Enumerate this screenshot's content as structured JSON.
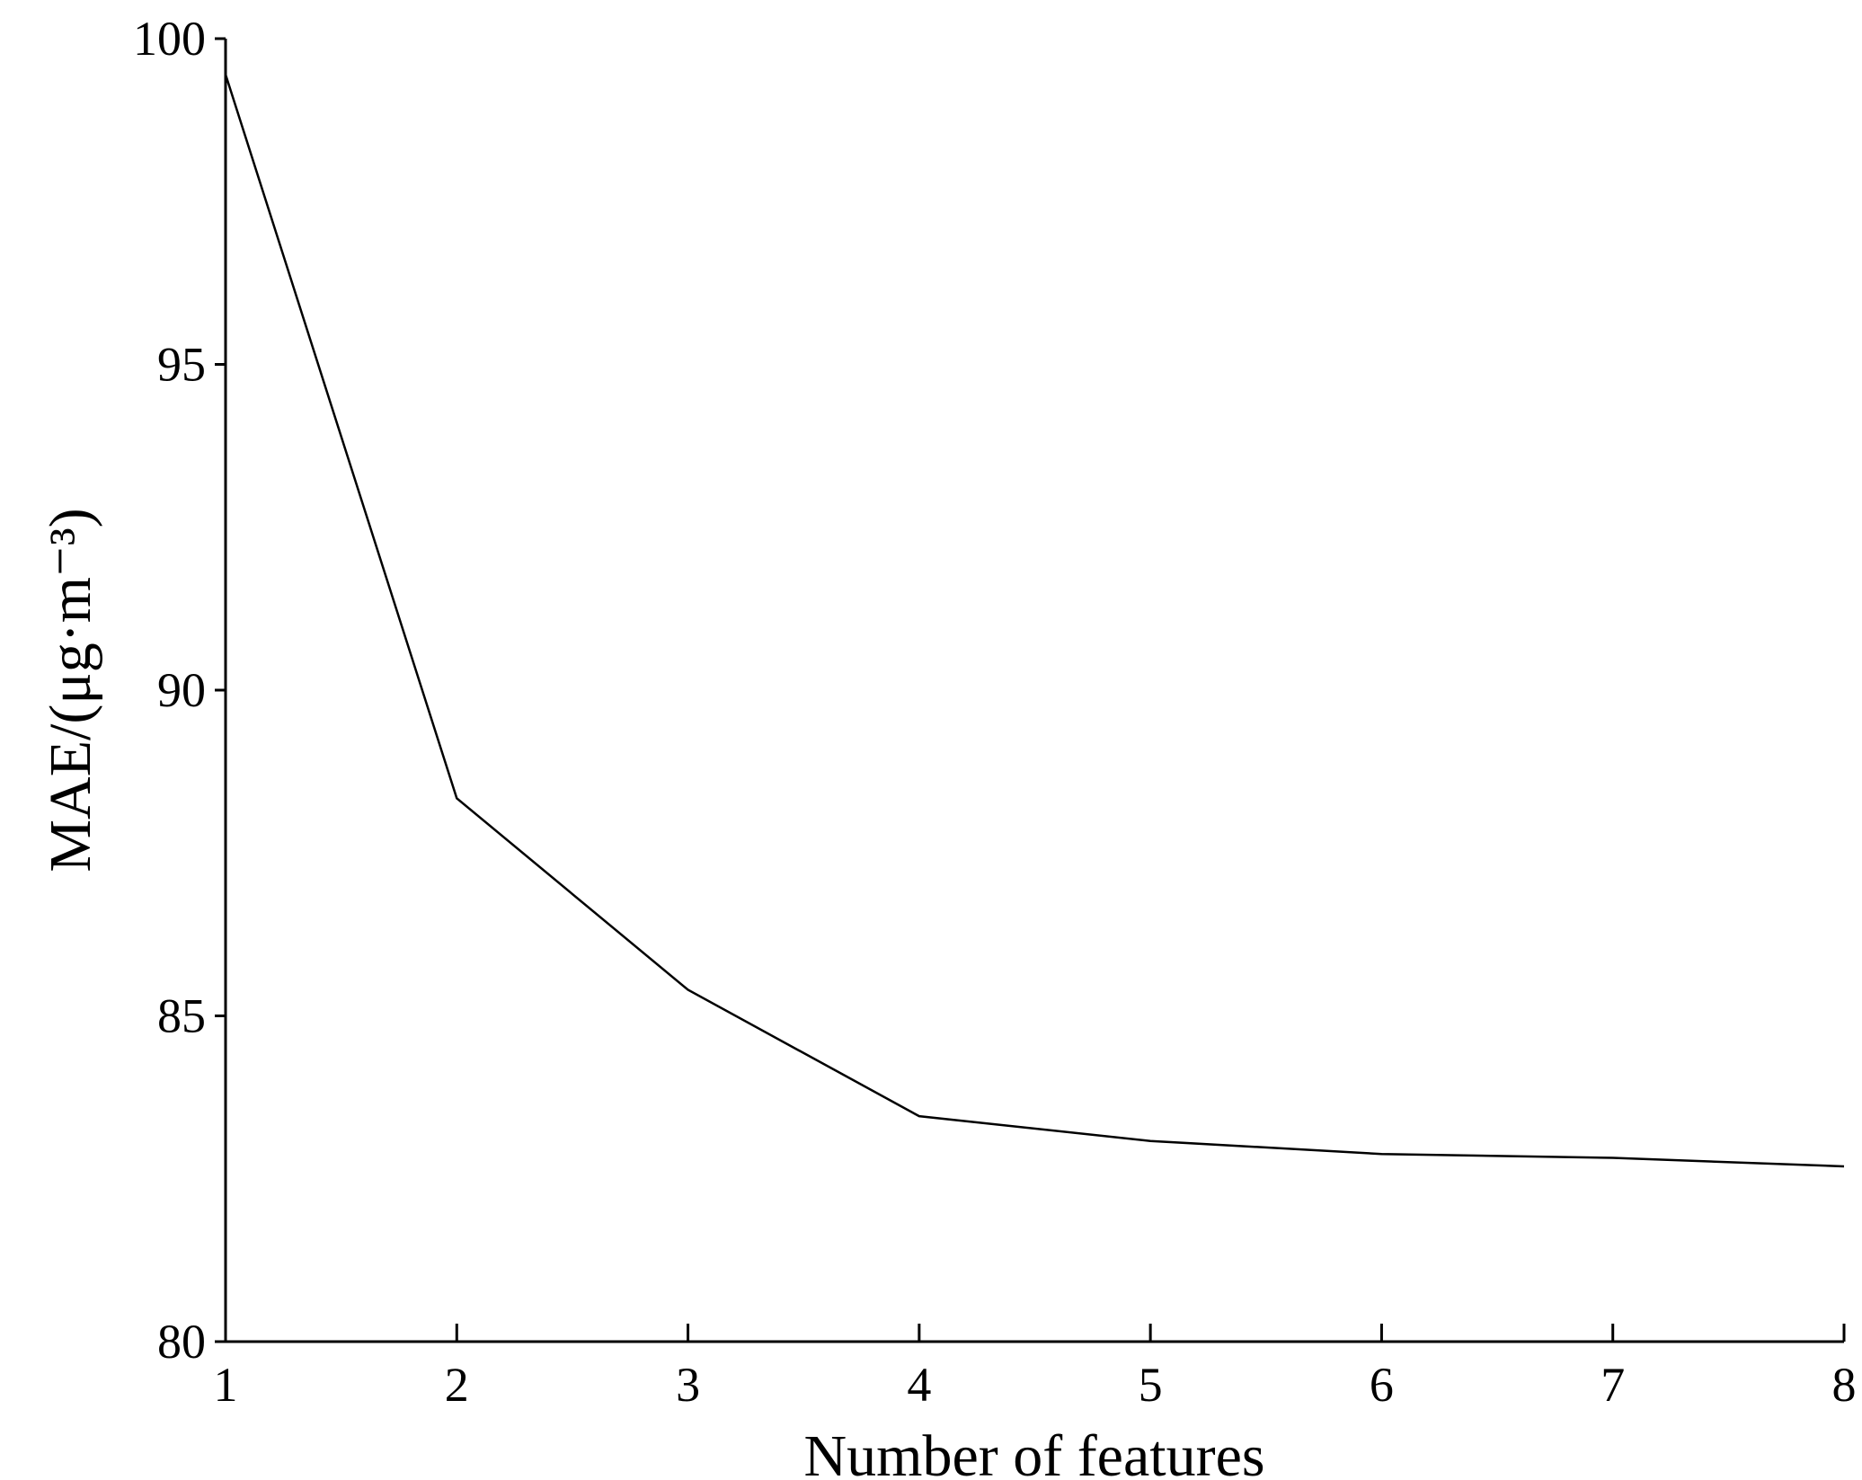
{
  "chart_data": {
    "type": "line",
    "x_label": "Number of features",
    "y_label": "MAE/(μg·m⁻³)",
    "x": [
      1,
      2,
      3,
      4,
      5,
      6,
      7,
      8
    ],
    "series": [
      {
        "color": "#000000",
        "values": [
          99.45,
          88.34,
          85.4,
          83.46,
          83.08,
          82.88,
          82.82,
          82.69
        ]
      }
    ],
    "xlim": [
      1,
      8
    ],
    "xticks": [
      1,
      2,
      3,
      4,
      5,
      6,
      7,
      8
    ],
    "ylim": [
      80,
      100
    ],
    "yticks": [
      80,
      85,
      90,
      95,
      100
    ]
  }
}
